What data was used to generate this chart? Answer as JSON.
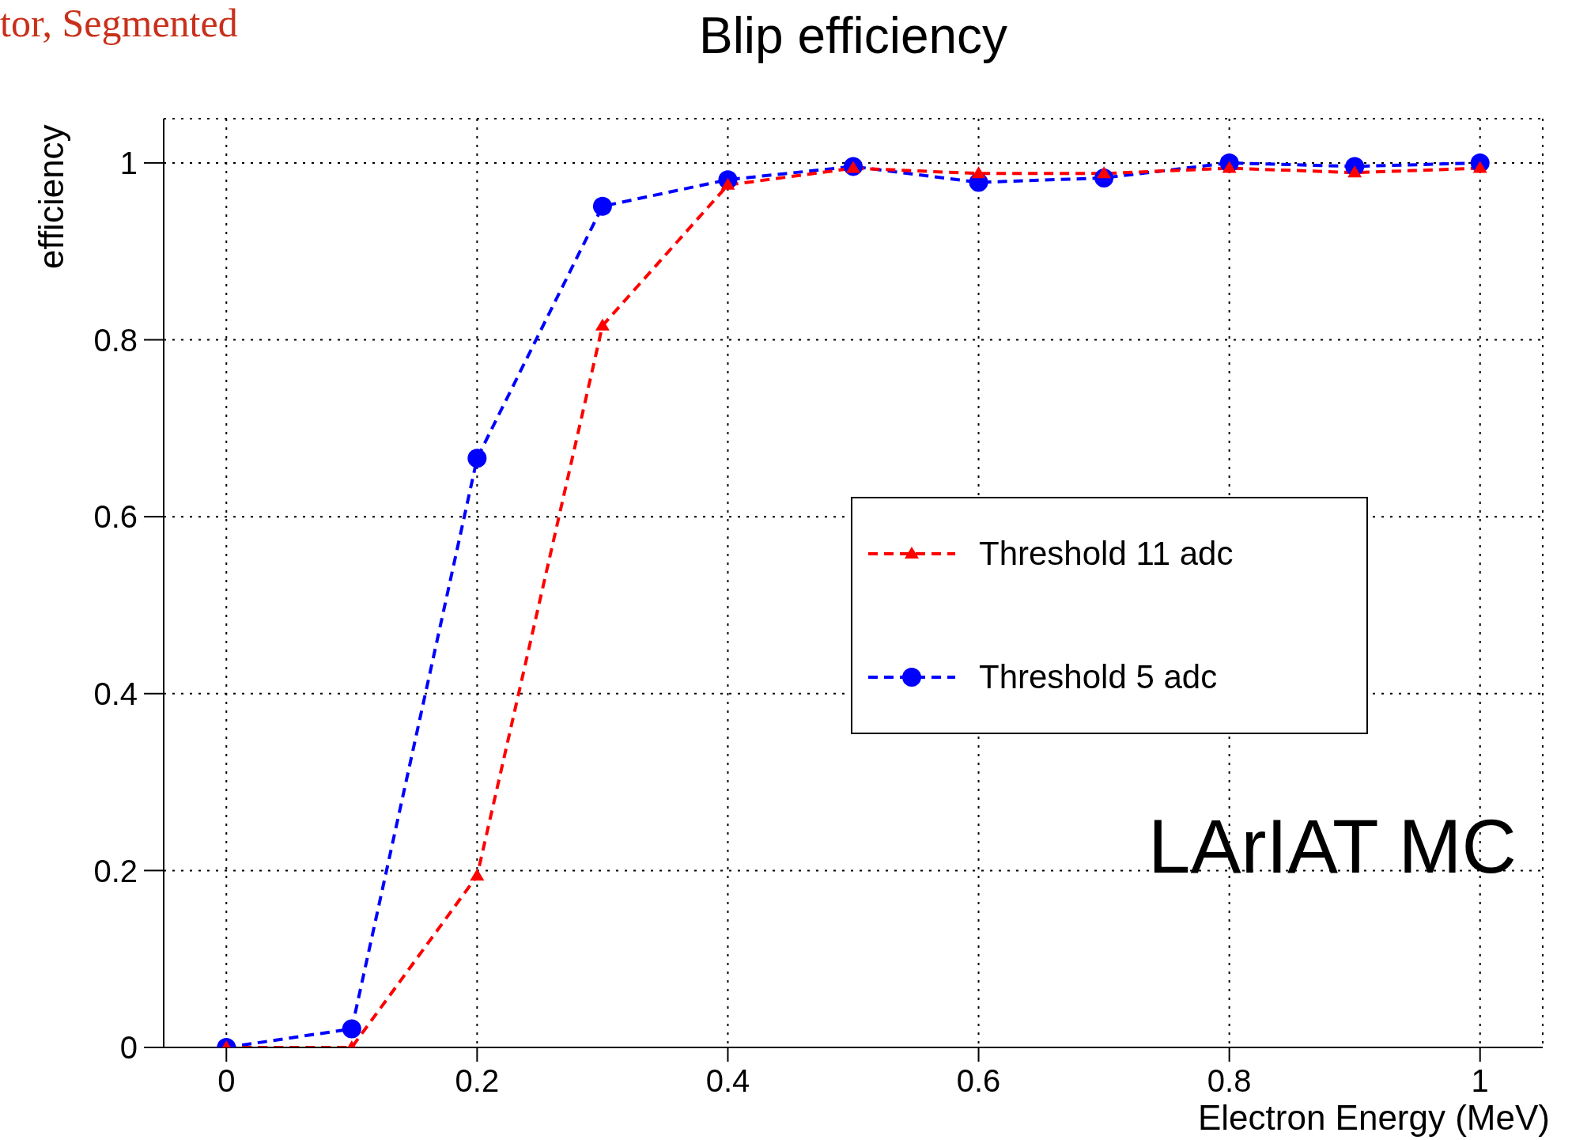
{
  "chart_data": {
    "type": "line",
    "title": "Blip efficiency",
    "xlabel": "Electron Energy (MeV)",
    "ylabel": "efficiency",
    "annotations": [
      "tor, Segmented",
      "LArIAT MC"
    ],
    "x": [
      0,
      0.1,
      0.2,
      0.3,
      0.4,
      0.5,
      0.6,
      0.7,
      0.8,
      0.9,
      1.0
    ],
    "series": [
      {
        "name": "Threshold 11 adc",
        "color": "#ff0000",
        "marker": "triangle",
        "values": [
          0,
          0,
          0.194,
          0.816,
          0.975,
          0.994,
          0.988,
          0.988,
          0.994,
          0.989,
          0.994
        ]
      },
      {
        "name": "Threshold 5 adc",
        "color": "#0000ff",
        "marker": "circle",
        "values": [
          0,
          0.021,
          0.666,
          0.951,
          0.981,
          0.996,
          0.978,
          0.983,
          1.0,
          0.996,
          1.0
        ]
      }
    ],
    "xlim": [
      -0.05,
      1.05
    ],
    "xticks": [
      0,
      0.2,
      0.4,
      0.6,
      0.8,
      1
    ],
    "ylim": [
      0,
      1.05
    ],
    "yticks": [
      0,
      0.2,
      0.4,
      0.6,
      0.8,
      1
    ],
    "grid": true,
    "legend": "right",
    "line_style": "dashed"
  }
}
